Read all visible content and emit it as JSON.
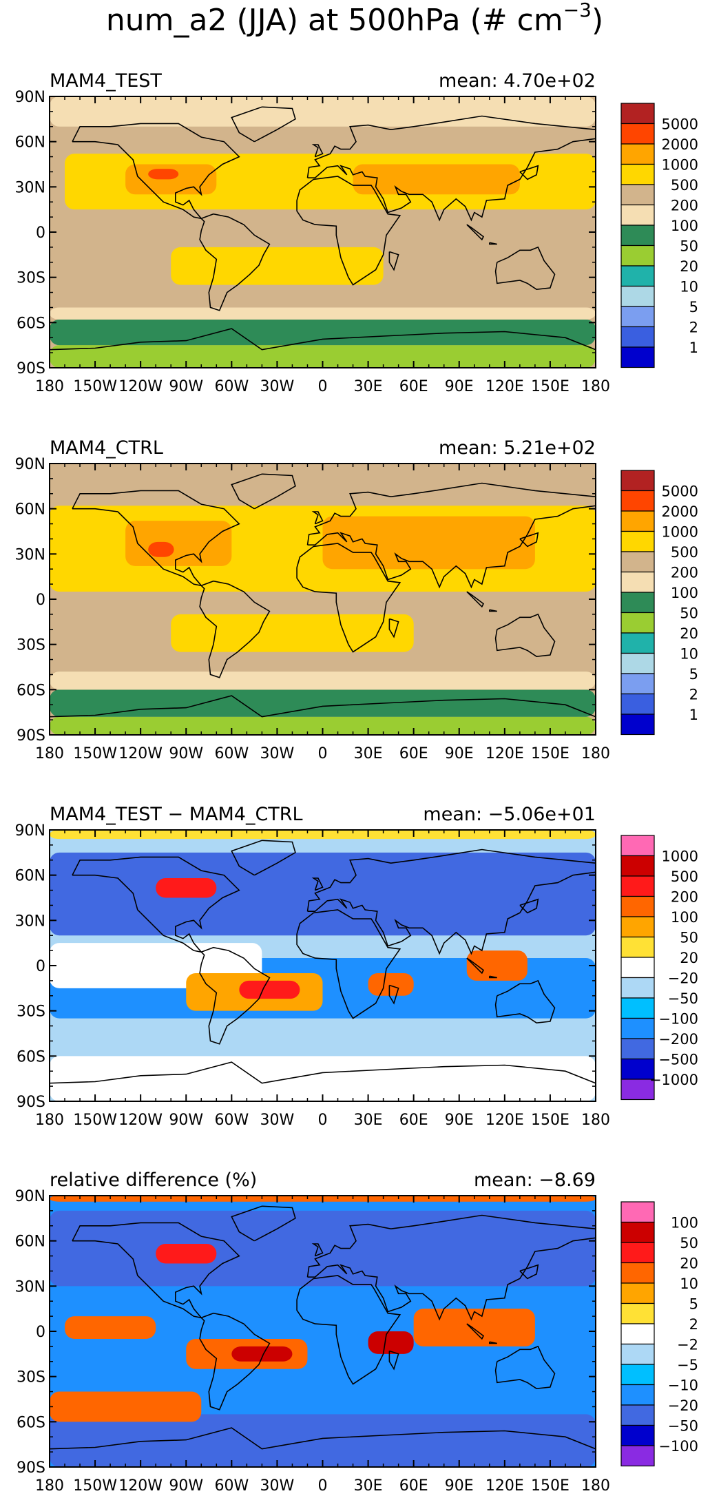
{
  "figure": {
    "title": "num_a2 (JJA) at 500hPa (# cm",
    "title_exponent": "−3",
    "title_close": ")"
  },
  "x_ticks": [
    "180",
    "150W",
    "120W",
    "90W",
    "60W",
    "30W",
    "0",
    "30E",
    "60E",
    "90E",
    "120E",
    "150E",
    "180"
  ],
  "y_ticks": [
    "90N",
    "60N",
    "30N",
    "0",
    "30S",
    "60S",
    "90S"
  ],
  "chart_data": [
    {
      "type": "heatmap",
      "title": "MAM4_TEST",
      "stat": "mean: 4.70e+02",
      "xlim": [
        -180,
        180
      ],
      "ylim": [
        -90,
        90
      ],
      "levels": [
        "5000",
        "2000",
        "1000",
        "500",
        "200",
        "100",
        "50",
        "20",
        "10",
        "5",
        "2",
        "1"
      ],
      "colors": [
        "#b22222",
        "#ff4500",
        "#ffa500",
        "#ffd700",
        "#d2b48c",
        "#f5deb3",
        "#2e8b57",
        "#9acd32",
        "#20b2aa",
        "#add8e6",
        "#7b9ef0",
        "#3a5fe0",
        "#0000cd"
      ],
      "background": "#d2b48c",
      "field_regions": [
        {
          "lon": [
            -180,
            180
          ],
          "lat": [
            -90,
            -75
          ],
          "color": "#9acd32"
        },
        {
          "lon": [
            -180,
            180
          ],
          "lat": [
            -75,
            -58
          ],
          "color": "#2e8b57"
        },
        {
          "lon": [
            -180,
            180
          ],
          "lat": [
            -58,
            -50
          ],
          "color": "#f5deb3"
        },
        {
          "lon": [
            -180,
            180
          ],
          "lat": [
            70,
            90
          ],
          "color": "#f5deb3"
        },
        {
          "lon": [
            -170,
            180
          ],
          "lat": [
            15,
            52
          ],
          "color": "#ffd700"
        },
        {
          "lon": [
            -100,
            40
          ],
          "lat": [
            -35,
            -10
          ],
          "color": "#ffd700"
        },
        {
          "lon": [
            -130,
            -70
          ],
          "lat": [
            25,
            45
          ],
          "color": "#ffa500"
        },
        {
          "lon": [
            20,
            130
          ],
          "lat": [
            25,
            45
          ],
          "color": "#ffa500"
        },
        {
          "lon": [
            -115,
            -95
          ],
          "lat": [
            35,
            42
          ],
          "color": "#ff4500"
        }
      ]
    },
    {
      "type": "heatmap",
      "title": "MAM4_CTRL",
      "stat": "mean: 5.21e+02",
      "xlim": [
        -180,
        180
      ],
      "ylim": [
        -90,
        90
      ],
      "levels": [
        "5000",
        "2000",
        "1000",
        "500",
        "200",
        "100",
        "50",
        "20",
        "10",
        "5",
        "2",
        "1"
      ],
      "colors": [
        "#b22222",
        "#ff4500",
        "#ffa500",
        "#ffd700",
        "#d2b48c",
        "#f5deb3",
        "#2e8b57",
        "#9acd32",
        "#20b2aa",
        "#add8e6",
        "#7b9ef0",
        "#3a5fe0",
        "#0000cd"
      ],
      "background": "#d2b48c",
      "field_regions": [
        {
          "lon": [
            -180,
            180
          ],
          "lat": [
            -90,
            -78
          ],
          "color": "#9acd32"
        },
        {
          "lon": [
            -180,
            180
          ],
          "lat": [
            -78,
            -60
          ],
          "color": "#2e8b57"
        },
        {
          "lon": [
            -180,
            180
          ],
          "lat": [
            -60,
            -48
          ],
          "color": "#f5deb3"
        },
        {
          "lon": [
            -180,
            180
          ],
          "lat": [
            5,
            62
          ],
          "color": "#ffd700"
        },
        {
          "lon": [
            -100,
            60
          ],
          "lat": [
            -35,
            -10
          ],
          "color": "#ffd700"
        },
        {
          "lon": [
            -130,
            -60
          ],
          "lat": [
            22,
            52
          ],
          "color": "#ffa500"
        },
        {
          "lon": [
            0,
            140
          ],
          "lat": [
            20,
            55
          ],
          "color": "#ffa500"
        },
        {
          "lon": [
            -115,
            -98
          ],
          "lat": [
            28,
            38
          ],
          "color": "#ff4500"
        }
      ]
    },
    {
      "type": "heatmap",
      "title": "MAM4_TEST − MAM4_CTRL",
      "stat": "mean: −5.06e+01",
      "xlim": [
        -180,
        180
      ],
      "ylim": [
        -90,
        90
      ],
      "levels": [
        "1000",
        "500",
        "200",
        "100",
        "50",
        "20",
        "−20",
        "−50",
        "−100",
        "−200",
        "−500",
        "−1000"
      ],
      "colors": [
        "#ff69b4",
        "#cc0000",
        "#ff1a1a",
        "#ff6600",
        "#ffa500",
        "#ffe135",
        "#ffffff",
        "#add8f5",
        "#00bfff",
        "#1e90ff",
        "#4169e1",
        "#0000cd",
        "#8a2be2"
      ],
      "background": "#add8f5",
      "field_regions": [
        {
          "lon": [
            -180,
            180
          ],
          "lat": [
            -90,
            -60
          ],
          "color": "#ffffff"
        },
        {
          "lon": [
            -180,
            180
          ],
          "lat": [
            20,
            75
          ],
          "color": "#4169e1"
        },
        {
          "lon": [
            -180,
            180
          ],
          "lat": [
            -35,
            5
          ],
          "color": "#1e90ff"
        },
        {
          "lon": [
            -180,
            -40
          ],
          "lat": [
            -15,
            15
          ],
          "color": "#ffffff"
        },
        {
          "lon": [
            -90,
            0
          ],
          "lat": [
            -30,
            -5
          ],
          "color": "#ffa500"
        },
        {
          "lon": [
            -55,
            -15
          ],
          "lat": [
            -22,
            -10
          ],
          "color": "#ff1a1a"
        },
        {
          "lon": [
            -110,
            -70
          ],
          "lat": [
            45,
            58
          ],
          "color": "#ff1a1a"
        },
        {
          "lon": [
            30,
            60
          ],
          "lat": [
            -20,
            -5
          ],
          "color": "#ff6600"
        },
        {
          "lon": [
            95,
            135
          ],
          "lat": [
            -10,
            10
          ],
          "color": "#ff6600"
        },
        {
          "lon": [
            -180,
            180
          ],
          "lat": [
            84,
            90
          ],
          "color": "#ffe135"
        }
      ]
    },
    {
      "type": "heatmap",
      "title": "relative difference (%)",
      "stat": "mean: −8.69",
      "xlim": [
        -180,
        180
      ],
      "ylim": [
        -90,
        90
      ],
      "levels": [
        "100",
        "50",
        "20",
        "10",
        "5",
        "2",
        "−2",
        "−5",
        "−10",
        "−20",
        "−50",
        "−100"
      ],
      "colors": [
        "#ff69b4",
        "#cc0000",
        "#ff1a1a",
        "#ff6600",
        "#ffa500",
        "#ffe135",
        "#ffffff",
        "#add8f5",
        "#00bfff",
        "#1e90ff",
        "#4169e1",
        "#0000cd",
        "#8a2be2"
      ],
      "background": "#1e90ff",
      "field_regions": [
        {
          "lon": [
            -180,
            180
          ],
          "lat": [
            -90,
            -55
          ],
          "color": "#4169e1"
        },
        {
          "lon": [
            -180,
            180
          ],
          "lat": [
            30,
            80
          ],
          "color": "#4169e1"
        },
        {
          "lon": [
            -180,
            -80
          ],
          "lat": [
            -60,
            -40
          ],
          "color": "#ff6600"
        },
        {
          "lon": [
            -170,
            -110
          ],
          "lat": [
            -5,
            10
          ],
          "color": "#ff6600"
        },
        {
          "lon": [
            -90,
            -10
          ],
          "lat": [
            -25,
            -5
          ],
          "color": "#ff6600"
        },
        {
          "lon": [
            -60,
            -20
          ],
          "lat": [
            -20,
            -10
          ],
          "color": "#cc0000"
        },
        {
          "lon": [
            -110,
            -70
          ],
          "lat": [
            45,
            58
          ],
          "color": "#ff1a1a"
        },
        {
          "lon": [
            30,
            60
          ],
          "lat": [
            -15,
            0
          ],
          "color": "#cc0000"
        },
        {
          "lon": [
            60,
            140
          ],
          "lat": [
            -10,
            15
          ],
          "color": "#ff6600"
        },
        {
          "lon": [
            -180,
            180
          ],
          "lat": [
            86,
            90
          ],
          "color": "#ff6600"
        }
      ]
    }
  ]
}
